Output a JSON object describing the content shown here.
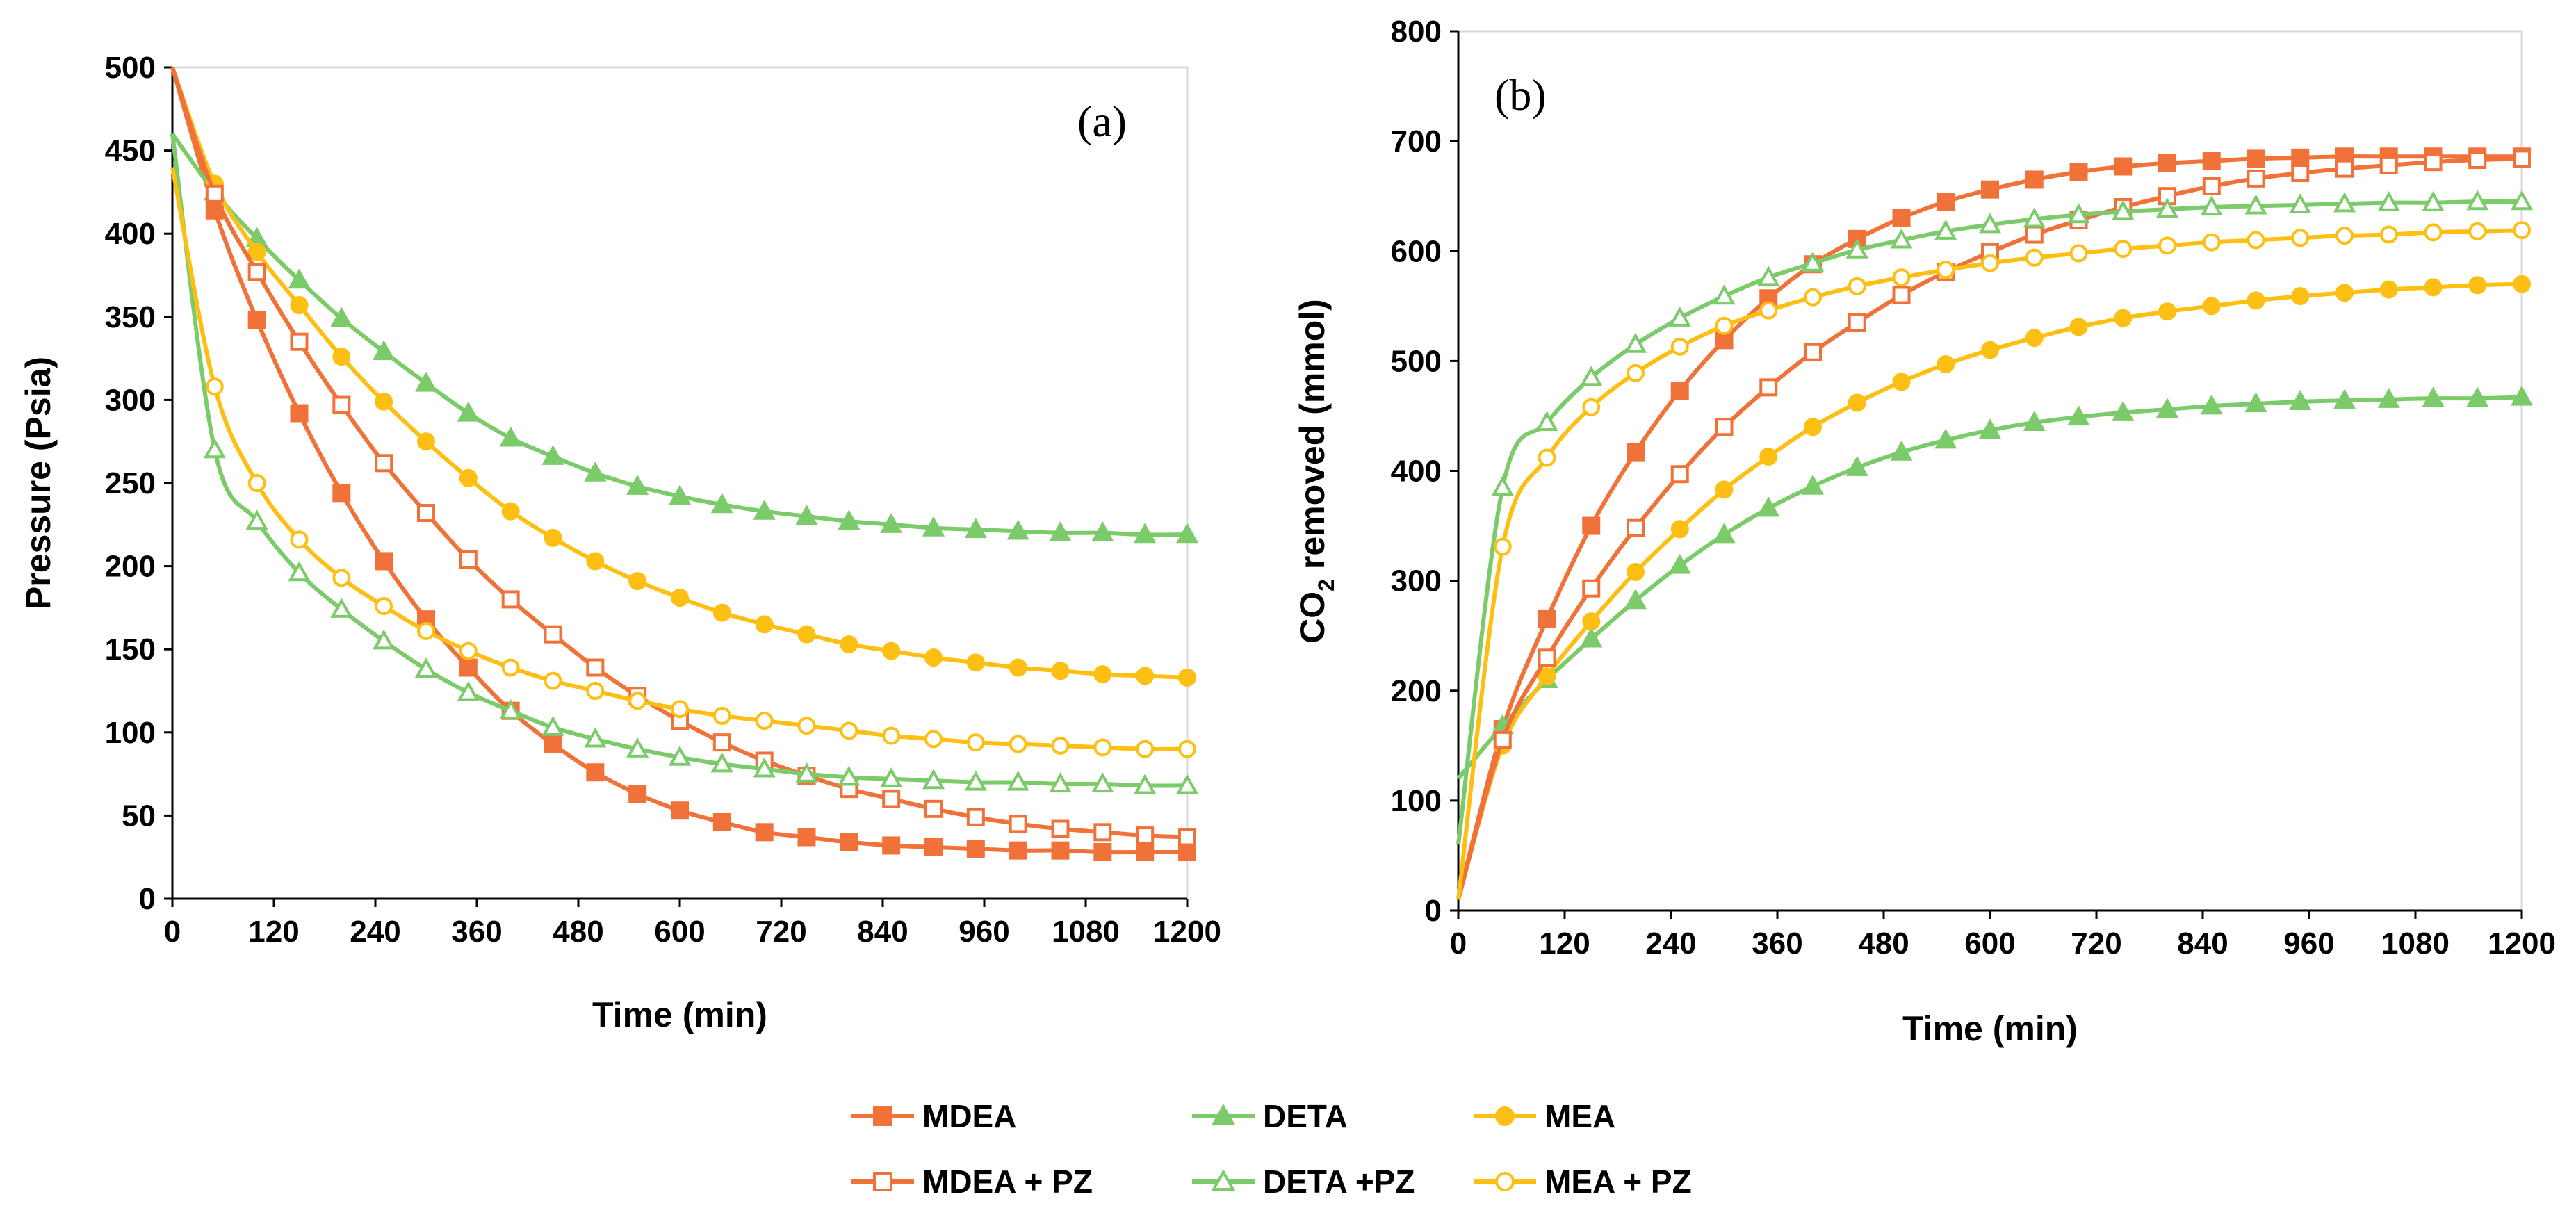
{
  "colors": {
    "mdea": "#F07238",
    "deta": "#7CCB6A",
    "mea": "#FDBF13"
  },
  "legend": [
    {
      "key": "mdea",
      "label": "MDEA",
      "marker": "square",
      "filled": true
    },
    {
      "key": "deta",
      "label": "DETA",
      "marker": "triangle",
      "filled": true
    },
    {
      "key": "mea",
      "label": "MEA",
      "marker": "circle",
      "filled": true
    },
    {
      "key": "mdea",
      "label": "MDEA + PZ",
      "marker": "square",
      "filled": false
    },
    {
      "key": "deta",
      "label": "DETA +PZ",
      "marker": "triangle",
      "filled": false
    },
    {
      "key": "mea",
      "label": "MEA + PZ",
      "marker": "circle",
      "filled": false
    }
  ],
  "chart_data": [
    {
      "type": "line",
      "panel_label": "(a)",
      "xlabel": "Time (min)",
      "ylabel": "Pressure (Psia)",
      "xlim": [
        0,
        1200
      ],
      "ylim": [
        0,
        500
      ],
      "xticks": [
        0,
        120,
        240,
        360,
        480,
        600,
        720,
        840,
        960,
        1080,
        1200
      ],
      "yticks": [
        0,
        50,
        100,
        150,
        200,
        250,
        300,
        350,
        400,
        450,
        500
      ],
      "grid": false,
      "x": [
        0,
        50,
        100,
        150,
        200,
        250,
        300,
        350,
        400,
        450,
        500,
        550,
        600,
        650,
        700,
        750,
        800,
        850,
        900,
        950,
        1000,
        1050,
        1100,
        1150,
        1200
      ],
      "marker_count": 24,
      "series": [
        {
          "name": "MDEA",
          "color_key": "mdea",
          "marker": "square",
          "filled": true,
          "values": [
            500,
            414,
            348,
            292,
            244,
            203,
            168,
            139,
            113,
            93,
            76,
            63,
            53,
            46,
            40,
            37,
            34,
            32,
            31,
            30,
            29,
            29,
            28,
            28,
            28
          ]
        },
        {
          "name": "DETA",
          "color_key": "deta",
          "marker": "triangle",
          "filled": true,
          "values": [
            460,
            425,
            397,
            372,
            349,
            329,
            310,
            292,
            277,
            266,
            256,
            248,
            242,
            237,
            233,
            230,
            227,
            225,
            223,
            222,
            221,
            220,
            220,
            219,
            219
          ]
        },
        {
          "name": "MEA",
          "color_key": "mea",
          "marker": "circle",
          "filled": true,
          "values": [
            500,
            430,
            389,
            357,
            326,
            299,
            275,
            253,
            233,
            217,
            203,
            191,
            181,
            172,
            165,
            159,
            153,
            149,
            145,
            142,
            139,
            137,
            135,
            134,
            133
          ]
        },
        {
          "name": "MDEA + PZ",
          "color_key": "mdea",
          "marker": "square",
          "filled": false,
          "values": [
            500,
            424,
            377,
            335,
            297,
            262,
            232,
            204,
            180,
            159,
            139,
            122,
            107,
            94,
            83,
            74,
            66,
            60,
            54,
            49,
            45,
            42,
            40,
            38,
            37
          ]
        },
        {
          "name": "DETA +PZ",
          "color_key": "deta",
          "marker": "triangle",
          "filled": false,
          "values": [
            460,
            270,
            227,
            196,
            174,
            155,
            138,
            124,
            113,
            103,
            96,
            90,
            85,
            81,
            78,
            75,
            73,
            72,
            71,
            70,
            70,
            69,
            69,
            68,
            68
          ]
        },
        {
          "name": "MEA + PZ",
          "color_key": "mea",
          "marker": "circle",
          "filled": false,
          "values": [
            440,
            308,
            250,
            216,
            193,
            176,
            161,
            149,
            139,
            131,
            125,
            119,
            114,
            110,
            107,
            104,
            101,
            98,
            96,
            94,
            93,
            92,
            91,
            90,
            90
          ]
        }
      ]
    },
    {
      "type": "line",
      "panel_label": "(b)",
      "xlabel": "Time (min)",
      "ylabel": "CO",
      "ylabel_sub": "2",
      "ylabel_tail": " removed (mmol)",
      "xlim": [
        0,
        1200
      ],
      "ylim": [
        0,
        800
      ],
      "xticks": [
        0,
        120,
        240,
        360,
        480,
        600,
        720,
        840,
        960,
        1080,
        1200
      ],
      "yticks": [
        0,
        100,
        200,
        300,
        400,
        500,
        600,
        700,
        800
      ],
      "grid": false,
      "x": [
        0,
        50,
        100,
        150,
        200,
        250,
        300,
        350,
        400,
        450,
        500,
        550,
        600,
        650,
        700,
        750,
        800,
        850,
        900,
        950,
        1000,
        1050,
        1100,
        1150,
        1200
      ],
      "marker_count": 24,
      "series": [
        {
          "name": "MDEA",
          "color_key": "mdea",
          "marker": "square",
          "filled": true,
          "values": [
            10,
            165,
            265,
            350,
            417,
            473,
            519,
            557,
            588,
            611,
            630,
            645,
            656,
            665,
            672,
            677,
            680,
            682,
            684,
            685,
            686,
            686,
            686,
            686,
            686
          ]
        },
        {
          "name": "DETA",
          "color_key": "deta",
          "marker": "triangle",
          "filled": true,
          "values": [
            120,
            168,
            210,
            247,
            282,
            314,
            342,
            366,
            386,
            403,
            417,
            428,
            437,
            444,
            449,
            453,
            456,
            459,
            461,
            463,
            464,
            465,
            466,
            466,
            467
          ]
        },
        {
          "name": "MEA",
          "color_key": "mea",
          "marker": "circle",
          "filled": true,
          "values": [
            10,
            150,
            213,
            263,
            308,
            347,
            383,
            413,
            440,
            462,
            481,
            497,
            510,
            521,
            531,
            539,
            545,
            550,
            555,
            559,
            562,
            565,
            567,
            569,
            570
          ]
        },
        {
          "name": "MDEA + PZ",
          "color_key": "mdea",
          "marker": "square",
          "filled": false,
          "values": [
            10,
            155,
            230,
            293,
            348,
            397,
            440,
            476,
            508,
            535,
            560,
            581,
            599,
            615,
            628,
            640,
            650,
            659,
            666,
            671,
            675,
            678,
            681,
            683,
            684
          ]
        },
        {
          "name": "DETA +PZ",
          "color_key": "deta",
          "marker": "triangle",
          "filled": false,
          "values": [
            60,
            385,
            444,
            485,
            515,
            539,
            559,
            576,
            589,
            601,
            610,
            618,
            624,
            629,
            633,
            636,
            638,
            640,
            641,
            642,
            643,
            644,
            644,
            645,
            645
          ]
        },
        {
          "name": "MEA + PZ",
          "color_key": "mea",
          "marker": "circle",
          "filled": false,
          "values": [
            10,
            331,
            412,
            458,
            489,
            513,
            532,
            546,
            558,
            568,
            576,
            583,
            589,
            594,
            598,
            602,
            605,
            608,
            610,
            612,
            614,
            615,
            617,
            618,
            619
          ]
        }
      ]
    }
  ]
}
